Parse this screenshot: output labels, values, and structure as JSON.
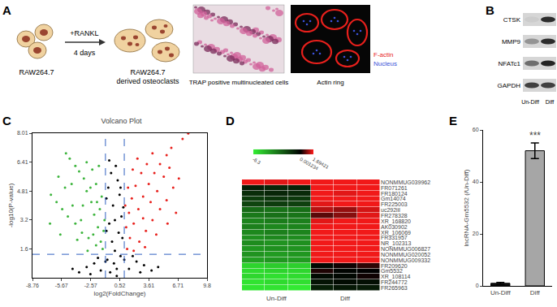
{
  "panels": [
    "A",
    "B",
    "C",
    "D",
    "E"
  ],
  "panel_a": {
    "start_cells": "RAW264.7",
    "treatment": "+RANKL",
    "duration": "4 days",
    "end_cells": [
      "RAW264.7",
      "derived osteoclasts"
    ],
    "trap_caption": "TRAP positive multinucleated cells",
    "actin_caption": "Actin ring",
    "stain_legend": [
      {
        "name": "F-actin",
        "color": "#e8201c"
      },
      {
        "name": "Nucleus",
        "color": "#3a50d8"
      }
    ]
  },
  "panel_b": {
    "proteins": [
      "CTSK",
      "MMP9",
      "NFATc1",
      "GAPDH"
    ],
    "lanes": [
      "Un-Diff",
      "Diff"
    ]
  },
  "chart_data": [
    {
      "type": "scatter",
      "title": "Volcano Plot",
      "x_label": "log2(FoldChange)",
      "y_label": "-log10(P-value)",
      "xlim": [
        -8.76,
        9.8
      ],
      "xticks": [
        -8.76,
        -5.67,
        -2.57,
        0.52,
        3.61,
        6.71,
        9.8
      ],
      "ylim": [
        0,
        8.01
      ],
      "yticks": [
        1.6,
        3.2,
        4.81,
        6.41,
        8.01
      ],
      "grid": false,
      "thresholds": {
        "x": [
          -1,
          1
        ],
        "y": 1.3
      },
      "series": [
        {
          "color": "#000000",
          "x": [
            -0.5,
            0.2,
            -0.8,
            0.6,
            -0.3,
            0.4,
            -0.6,
            0.7,
            -0.2,
            0.5,
            -0.7,
            0.3,
            -0.4,
            0.1,
            -1.5,
            1.5,
            -2.2,
            2.3,
            -3.0,
            3.1,
            -3.8,
            3.9,
            -1.0,
            1.0,
            -2.6,
            2.7,
            0.0,
            0.8,
            -0.9,
            0.9,
            -0.9,
            0.0,
            -1.8,
            1.9,
            -4.5,
            4.6,
            0.2,
            -0.1,
            0.6,
            -0.6
          ],
          "values": [
            0.3,
            0.5,
            1.0,
            1.2,
            2.0,
            2.5,
            3.0,
            3.4,
            4.0,
            4.6,
            5.0,
            5.4,
            5.8,
            6.2,
            0.4,
            0.5,
            0.8,
            0.9,
            0.6,
            0.7,
            0.3,
            0.4,
            0.9,
            1.0,
            0.2,
            0.3,
            1.5,
            2.2,
            2.6,
            3.9,
            4.4,
            3.2,
            1.1,
            1.2,
            0.5,
            0.6,
            0.1,
            0.8,
            5.0,
            6.5
          ]
        },
        {
          "color": "#3cb43c",
          "x": [
            -1.5,
            -1.8,
            -2.2,
            -2.5,
            -3.0,
            -3.3,
            -3.8,
            -4.2,
            -4.8,
            -5.2,
            -1.3,
            -2.0,
            -2.8,
            -3.5,
            -4.2,
            -5.0,
            -5.6,
            -6.2,
            -6.8,
            -2.6,
            -1.6,
            -1.4,
            -2.0,
            -2.4,
            -3.0,
            -3.6,
            -4.5,
            -5.3,
            -6.0,
            -4.0,
            -1.2,
            -1.7,
            -2.9,
            -5.8,
            -6.9,
            -3.4,
            -4.6,
            -1.9,
            -2.3,
            -1.1
          ],
          "values": [
            2.0,
            2.8,
            3.5,
            4.2,
            4.8,
            5.5,
            5.9,
            6.2,
            6.6,
            6.9,
            1.6,
            1.8,
            2.2,
            2.5,
            3.0,
            3.4,
            3.8,
            4.2,
            4.6,
            5.0,
            3.8,
            4.5,
            5.2,
            6.0,
            6.4,
            3.2,
            4.0,
            5.0,
            5.6,
            2.1,
            2.6,
            6.2,
            1.5,
            2.4,
            3.0,
            4.0,
            5.2,
            4.2,
            2.4,
            3.2
          ]
        },
        {
          "color": "#e8201c",
          "x": [
            1.3,
            1.6,
            2.0,
            2.5,
            3.0,
            3.6,
            4.2,
            4.8,
            5.5,
            6.0,
            7.2,
            7.8,
            1.2,
            1.5,
            1.8,
            2.2,
            2.8,
            3.4,
            2.6,
            3.3,
            4.0,
            4.8,
            5.5,
            6.2,
            6.8,
            1.4,
            1.9,
            2.4,
            3.8,
            4.5,
            5.2,
            5.8,
            3.2,
            4.4,
            5.6,
            6.5,
            1.1,
            2.0,
            3.0,
            4.0
          ],
          "values": [
            1.6,
            2.2,
            3.0,
            3.8,
            4.5,
            5.2,
            5.8,
            6.3,
            6.8,
            7.2,
            7.7,
            8.0,
            2.8,
            3.6,
            4.4,
            5.1,
            5.8,
            6.3,
            2.0,
            2.6,
            3.2,
            3.8,
            4.3,
            5.0,
            5.5,
            5.0,
            6.0,
            6.6,
            4.2,
            4.8,
            5.6,
            6.1,
            1.7,
            2.4,
            3.0,
            3.6,
            4.0,
            1.5,
            3.3,
            6.9
          ]
        }
      ]
    },
    {
      "type": "heatmap",
      "categories": [
        "NONMMUG039962",
        "FR071261",
        "FR180124",
        "Gm14074",
        "FR225003",
        "uc292iil",
        "FR278328",
        "XR_168820",
        "AK030902",
        "XR_106069",
        "FR331957",
        "NR_102313",
        "NONMMUG006827",
        "NONMMUG020052",
        "NONMMUG009332",
        "FR209620",
        "Gm5532",
        "XR_108114",
        "FR244772",
        "FR265963"
      ],
      "groups": [
        "Un-Diff",
        "Diff"
      ],
      "cells": [
        [
          1.6,
          1.5,
          1.6,
          1.6,
          1.6,
          1.6
        ],
        [
          -0.8,
          -1.0,
          -0.9,
          1.6,
          1.6,
          1.6
        ],
        [
          -1.2,
          -1.0,
          -1.1,
          1.6,
          1.5,
          1.6
        ],
        [
          -1.6,
          -1.4,
          -1.5,
          1.6,
          1.6,
          1.6
        ],
        [
          -1.8,
          -1.6,
          -1.7,
          1.5,
          1.6,
          1.6
        ],
        [
          -2.8,
          -3.0,
          -2.9,
          1.2,
          1.0,
          1.4
        ],
        [
          -3.2,
          -3.0,
          -3.1,
          0.6,
          0.9,
          1.5
        ],
        [
          -3.5,
          -3.3,
          -3.4,
          1.5,
          1.6,
          1.6
        ],
        [
          -3.4,
          -3.6,
          -3.5,
          1.6,
          1.6,
          1.6
        ],
        [
          -3.6,
          -3.4,
          -3.5,
          1.6,
          1.6,
          1.6
        ],
        [
          -3.8,
          -3.6,
          -3.7,
          1.6,
          1.6,
          1.6
        ],
        [
          -3.7,
          -3.9,
          -3.8,
          1.6,
          1.6,
          1.6
        ],
        [
          -4.0,
          -3.8,
          -3.9,
          1.6,
          1.6,
          1.6
        ],
        [
          -3.9,
          -4.1,
          -4.0,
          1.6,
          1.6,
          1.6
        ],
        [
          -4.2,
          -4.0,
          -4.1,
          1.6,
          1.6,
          1.6
        ],
        [
          -5.6,
          -5.4,
          -5.5,
          -0.2,
          0.1,
          0.3
        ],
        [
          -5.8,
          -5.6,
          -5.7,
          0.2,
          -0.1,
          0.0
        ],
        [
          -5.7,
          -5.9,
          -5.8,
          -0.3,
          -0.2,
          0.1
        ],
        [
          -6.0,
          -5.8,
          -5.9,
          -0.5,
          -0.3,
          -0.4
        ],
        [
          -6.1,
          -6.0,
          -6.2,
          -0.8,
          -0.6,
          -0.7
        ]
      ],
      "colorbar": {
        "range": [
          -6.3,
          1.69421
        ],
        "ticks": [
          -6.3,
          0.001234,
          1.69421
        ]
      }
    },
    {
      "type": "bar",
      "categories": [
        "Un-Diff",
        "Diff"
      ],
      "values": [
        1,
        52
      ],
      "errors": [
        0.3,
        3
      ],
      "colors": [
        "#111111",
        "#a6a6a6"
      ],
      "ylim": [
        0,
        60
      ],
      "yticks": [
        0,
        20,
        40,
        60
      ],
      "y_label": "lncRNA-Gm5532 (/Un-Diff)",
      "grid": false,
      "annotations": [
        {
          "category": "Diff",
          "text": "***"
        }
      ]
    }
  ]
}
